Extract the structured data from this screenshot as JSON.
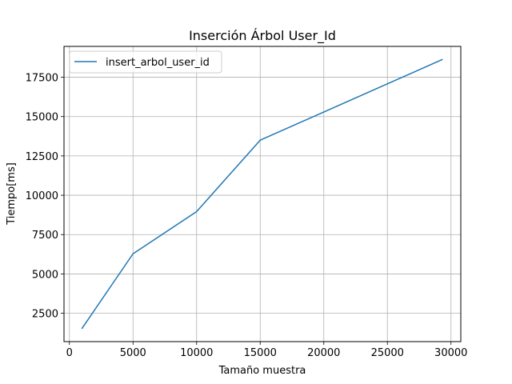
{
  "chart_data": {
    "type": "line",
    "title": "Inserción Árbol User_Id",
    "xlabel": "Tamaño muestra",
    "ylabel": "Tiempo[ms]",
    "xlim": [
      -425,
      30771
    ],
    "ylim": [
      700,
      19460
    ],
    "xticks": [
      0,
      5000,
      10000,
      15000,
      20000,
      25000,
      30000
    ],
    "yticks": [
      2500,
      5000,
      7500,
      10000,
      12500,
      15000,
      17500
    ],
    "grid": true,
    "legend_position": "upper left",
    "series": [
      {
        "name": "insert_arbol_user_id",
        "color": "#1f77b4",
        "x": [
          1000,
          5000,
          10000,
          15000,
          29300
        ],
        "y": [
          1550,
          6280,
          8960,
          13500,
          18620
        ]
      }
    ]
  }
}
